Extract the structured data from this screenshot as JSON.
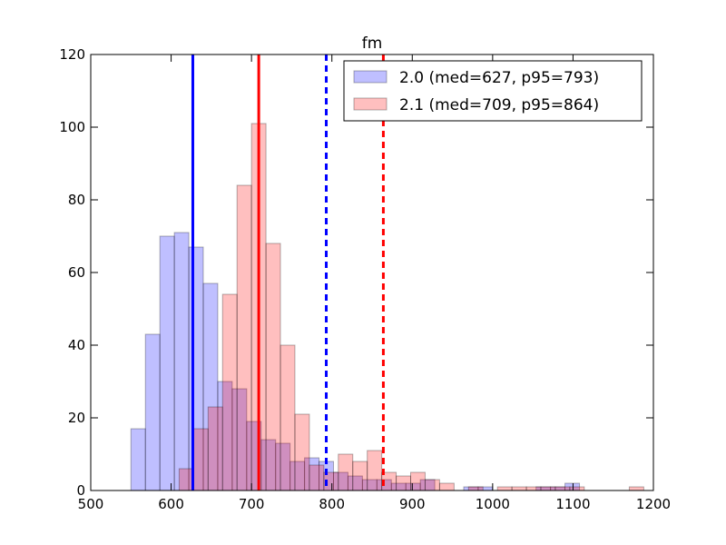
{
  "chart_data": {
    "type": "histogram",
    "title": "fm",
    "xlim": [
      500,
      1200
    ],
    "ylim": [
      0,
      120
    ],
    "xticks": [
      500,
      600,
      700,
      800,
      900,
      1000,
      1100,
      1200
    ],
    "yticks": [
      0,
      20,
      40,
      60,
      80,
      100,
      120
    ],
    "grid": false,
    "legend_position": "top-right",
    "series": [
      {
        "name": "2.0 (med=627, p95=793)",
        "color": "#0000ff",
        "bins": [
          {
            "x0": 550,
            "x1": 568,
            "count": 17
          },
          {
            "x0": 568,
            "x1": 586,
            "count": 43
          },
          {
            "x0": 586,
            "x1": 604,
            "count": 70
          },
          {
            "x0": 604,
            "x1": 622,
            "count": 71
          },
          {
            "x0": 622,
            "x1": 640,
            "count": 67
          },
          {
            "x0": 640,
            "x1": 658,
            "count": 57
          },
          {
            "x0": 658,
            "x1": 676,
            "count": 30
          },
          {
            "x0": 676,
            "x1": 694,
            "count": 28
          },
          {
            "x0": 694,
            "x1": 712,
            "count": 19
          },
          {
            "x0": 712,
            "x1": 730,
            "count": 14
          },
          {
            "x0": 730,
            "x1": 748,
            "count": 13
          },
          {
            "x0": 748,
            "x1": 766,
            "count": 8
          },
          {
            "x0": 766,
            "x1": 784,
            "count": 9
          },
          {
            "x0": 784,
            "x1": 802,
            "count": 8
          },
          {
            "x0": 802,
            "x1": 820,
            "count": 5
          },
          {
            "x0": 820,
            "x1": 838,
            "count": 4
          },
          {
            "x0": 838,
            "x1": 856,
            "count": 3
          },
          {
            "x0": 856,
            "x1": 874,
            "count": 3
          },
          {
            "x0": 874,
            "x1": 892,
            "count": 2
          },
          {
            "x0": 892,
            "x1": 910,
            "count": 2
          },
          {
            "x0": 910,
            "x1": 928,
            "count": 3
          },
          {
            "x0": 928,
            "x1": 946,
            "count": 0
          },
          {
            "x0": 946,
            "x1": 964,
            "count": 0
          },
          {
            "x0": 964,
            "x1": 982,
            "count": 1
          },
          {
            "x0": 982,
            "x1": 1000,
            "count": 1
          },
          {
            "x0": 1000,
            "x1": 1018,
            "count": 0
          },
          {
            "x0": 1018,
            "x1": 1036,
            "count": 0
          },
          {
            "x0": 1036,
            "x1": 1054,
            "count": 0
          },
          {
            "x0": 1054,
            "x1": 1072,
            "count": 1
          },
          {
            "x0": 1072,
            "x1": 1090,
            "count": 1
          },
          {
            "x0": 1090,
            "x1": 1108,
            "count": 2
          }
        ],
        "median": 627,
        "p95": 793
      },
      {
        "name": "2.1 (med=709, p95=864)",
        "color": "#ff0000",
        "bins": [
          {
            "x0": 610,
            "x1": 628,
            "count": 6
          },
          {
            "x0": 628,
            "x1": 646,
            "count": 17
          },
          {
            "x0": 646,
            "x1": 664,
            "count": 23
          },
          {
            "x0": 664,
            "x1": 682,
            "count": 54
          },
          {
            "x0": 682,
            "x1": 700,
            "count": 84
          },
          {
            "x0": 700,
            "x1": 718,
            "count": 101
          },
          {
            "x0": 718,
            "x1": 736,
            "count": 68
          },
          {
            "x0": 736,
            "x1": 754,
            "count": 40
          },
          {
            "x0": 754,
            "x1": 772,
            "count": 21
          },
          {
            "x0": 772,
            "x1": 790,
            "count": 7
          },
          {
            "x0": 790,
            "x1": 808,
            "count": 5
          },
          {
            "x0": 808,
            "x1": 826,
            "count": 10
          },
          {
            "x0": 826,
            "x1": 844,
            "count": 8
          },
          {
            "x0": 844,
            "x1": 862,
            "count": 11
          },
          {
            "x0": 862,
            "x1": 880,
            "count": 5
          },
          {
            "x0": 880,
            "x1": 898,
            "count": 4
          },
          {
            "x0": 898,
            "x1": 916,
            "count": 5
          },
          {
            "x0": 916,
            "x1": 934,
            "count": 3
          },
          {
            "x0": 934,
            "x1": 952,
            "count": 2
          },
          {
            "x0": 952,
            "x1": 970,
            "count": 0
          },
          {
            "x0": 970,
            "x1": 988,
            "count": 1
          },
          {
            "x0": 988,
            "x1": 1006,
            "count": 0
          },
          {
            "x0": 1006,
            "x1": 1024,
            "count": 1
          },
          {
            "x0": 1024,
            "x1": 1042,
            "count": 1
          },
          {
            "x0": 1042,
            "x1": 1060,
            "count": 1
          },
          {
            "x0": 1060,
            "x1": 1078,
            "count": 1
          },
          {
            "x0": 1078,
            "x1": 1096,
            "count": 1
          },
          {
            "x0": 1096,
            "x1": 1114,
            "count": 1
          },
          {
            "x0": 1170,
            "x1": 1188,
            "count": 1
          }
        ],
        "median": 709,
        "p95": 864
      }
    ]
  }
}
